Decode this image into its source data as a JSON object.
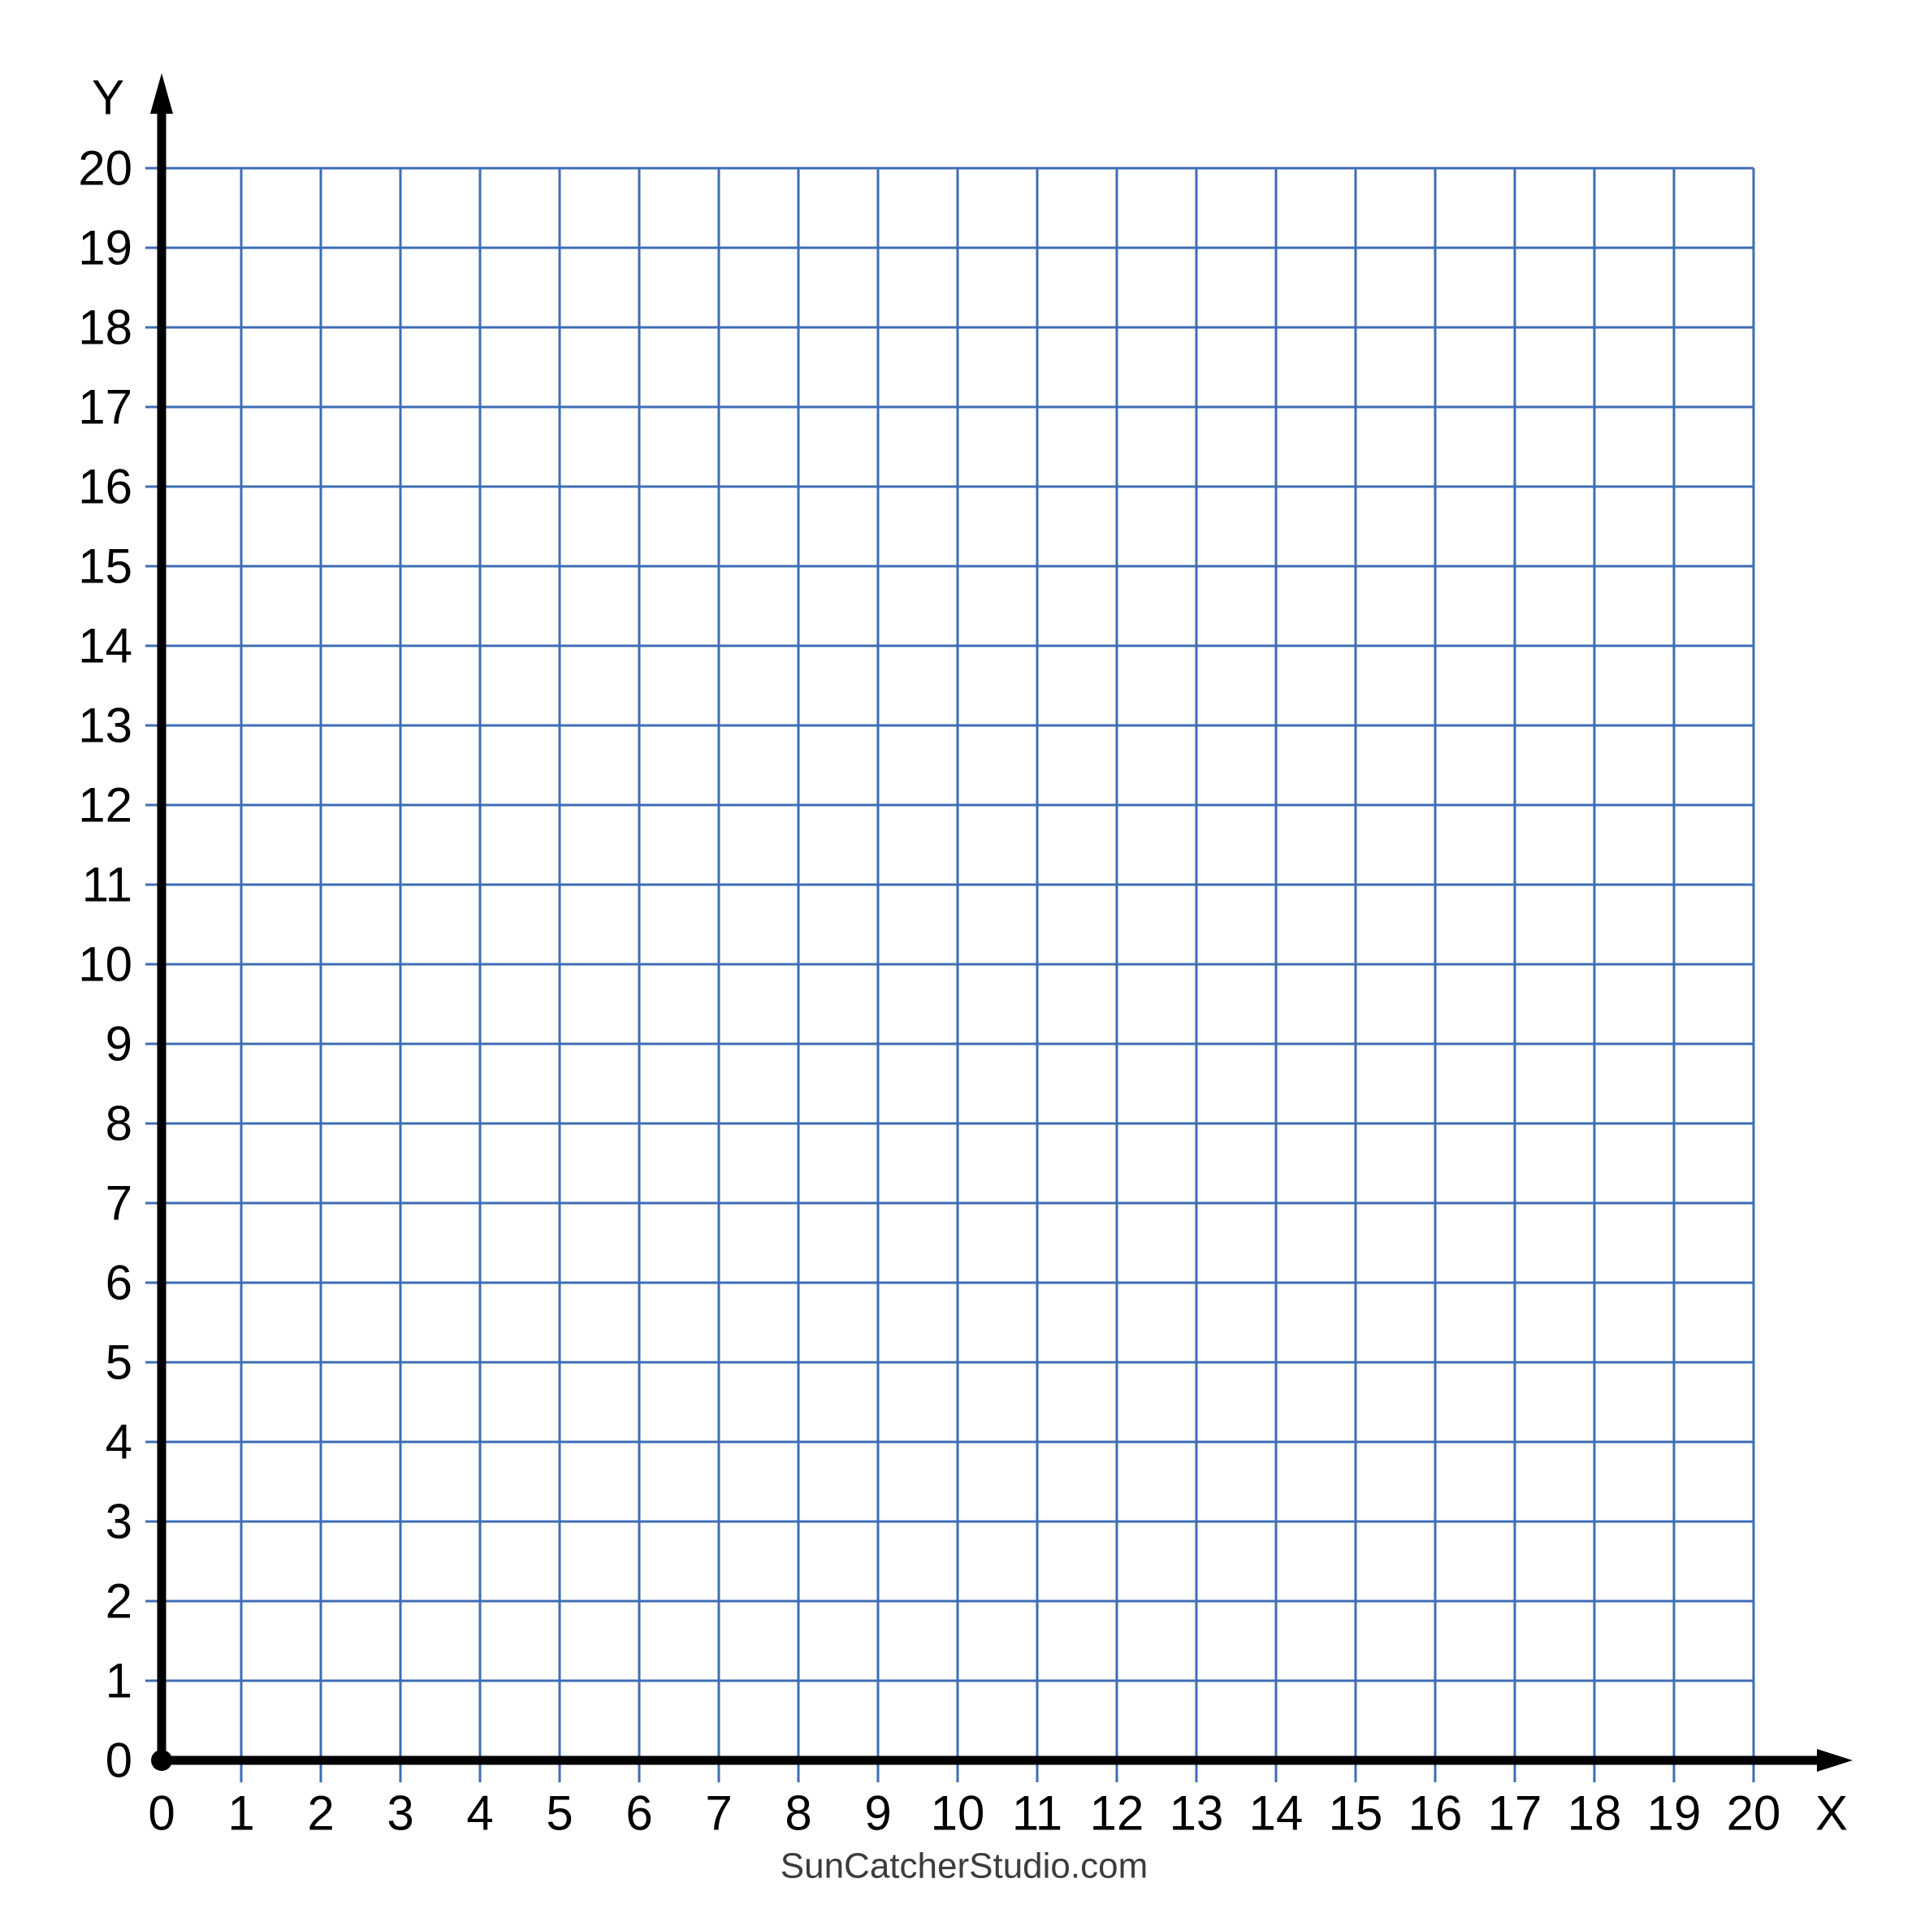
{
  "chart_data": {
    "type": "scatter",
    "title": "",
    "description": "Blank first-quadrant coordinate grid (graph paper) with 20x20 unit squares",
    "xlabel": "X",
    "ylabel": "Y",
    "xlim": [
      0,
      20
    ],
    "ylim": [
      0,
      20
    ],
    "x_ticks": [
      0,
      1,
      2,
      3,
      4,
      5,
      6,
      7,
      8,
      9,
      10,
      11,
      12,
      13,
      14,
      15,
      16,
      17,
      18,
      19,
      20
    ],
    "y_ticks": [
      0,
      1,
      2,
      3,
      4,
      5,
      6,
      7,
      8,
      9,
      10,
      11,
      12,
      13,
      14,
      15,
      16,
      17,
      18,
      19,
      20
    ],
    "grid": true,
    "legend": false,
    "series": []
  },
  "footer": {
    "site_label": "SunCatcherStudio.com"
  },
  "colors": {
    "grid_line": "#3E6DB5",
    "axis": "#000000",
    "tick_label": "#000000",
    "footer_text": "#3C3C3C",
    "background": "#FFFFFF"
  }
}
